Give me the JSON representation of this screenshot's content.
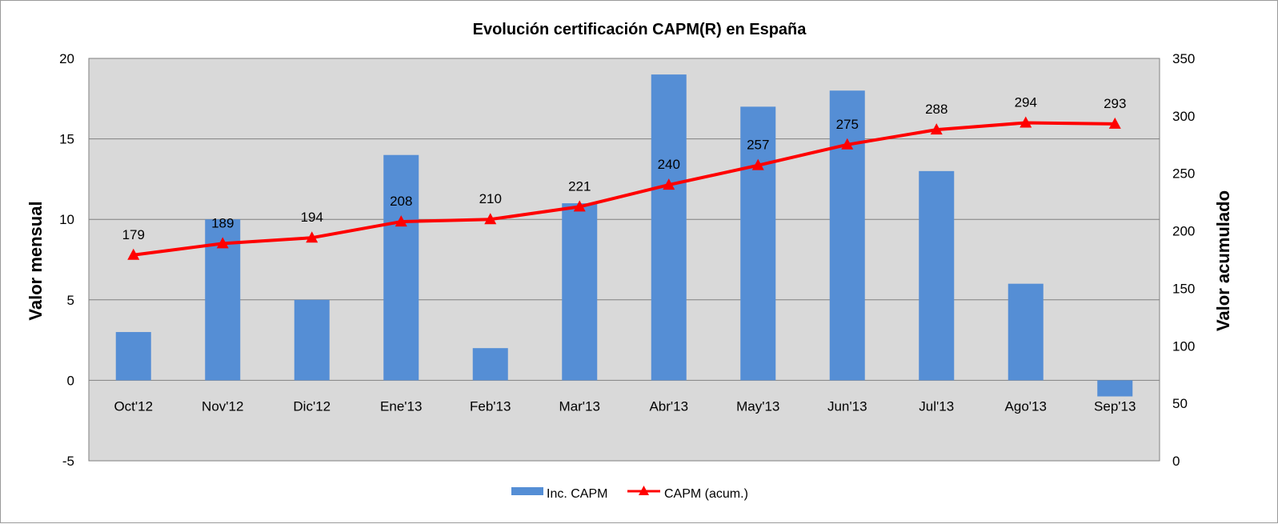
{
  "chart_data": {
    "type": "bar",
    "title": "Evolución certificación CAPM(R) en España",
    "xlabel": "",
    "ylabel": "Valor mensual",
    "y2label": "Valor acumulado",
    "categories": [
      "Oct'12",
      "Nov'12",
      "Dic'12",
      "Ene'13",
      "Feb'13",
      "Mar'13",
      "Abr'13",
      "May'13",
      "Jun'13",
      "Jul'13",
      "Ago'13",
      "Sep'13"
    ],
    "ylim": [
      -5,
      20
    ],
    "yticks": [
      "-5",
      "0",
      "5",
      "10",
      "15",
      "20"
    ],
    "y2lim": [
      0,
      350
    ],
    "y2ticks": [
      "0",
      "50",
      "100",
      "150",
      "200",
      "250",
      "300",
      "350"
    ],
    "grid": true,
    "legend_position": "bottom",
    "series": [
      {
        "name": "Inc. CAPM",
        "type": "bar",
        "axis": "left",
        "color": "#558ed5",
        "values": [
          3,
          10,
          5,
          14,
          2,
          11,
          19,
          17,
          18,
          13,
          6,
          -1
        ]
      },
      {
        "name": "CAPM (acum.)",
        "type": "line",
        "axis": "right",
        "color": "#ff0000",
        "marker": "triangle",
        "values": [
          179,
          189,
          194,
          208,
          210,
          221,
          240,
          257,
          275,
          288,
          294,
          293
        ],
        "data_labels": [
          "179",
          "189",
          "194",
          "208",
          "210",
          "221",
          "240",
          "257",
          "275",
          "288",
          "294",
          "293"
        ]
      }
    ]
  }
}
